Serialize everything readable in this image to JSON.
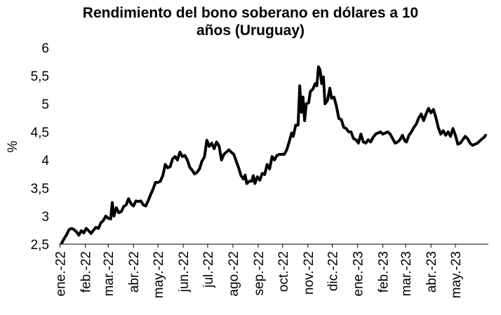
{
  "chart_data": {
    "type": "line",
    "title_line1": "Rendimiento del bono soberano en dólares a 10",
    "title_line2": "años (Uruguay)",
    "xlabel": "",
    "ylabel": "%",
    "ylim": [
      2.5,
      6
    ],
    "yticks": [
      "2,5",
      "3",
      "3,5",
      "4",
      "4,5",
      "5",
      "5,5",
      "6"
    ],
    "ytick_values": [
      2.5,
      3,
      3.5,
      4,
      4.5,
      5,
      5.5,
      6
    ],
    "grid": false,
    "legend": "none",
    "line_color": "#000000",
    "x_start": "2022-01-03",
    "x_end": "2023-06-07",
    "xticks": [
      {
        "date": "2022-01-01",
        "label": "ene.-22"
      },
      {
        "date": "2022-02-01",
        "label": "feb.-22"
      },
      {
        "date": "2022-03-01",
        "label": "mar.-22"
      },
      {
        "date": "2022-04-01",
        "label": "abr.-22"
      },
      {
        "date": "2022-05-01",
        "label": "may.-22"
      },
      {
        "date": "2022-06-01",
        "label": "jun.-22"
      },
      {
        "date": "2022-07-01",
        "label": "jul.-22"
      },
      {
        "date": "2022-08-01",
        "label": "ago.-22"
      },
      {
        "date": "2022-09-01",
        "label": "sep.-22"
      },
      {
        "date": "2022-10-01",
        "label": "oct.-22"
      },
      {
        "date": "2022-11-01",
        "label": "nov.-22"
      },
      {
        "date": "2022-12-01",
        "label": "dic.-22"
      },
      {
        "date": "2023-01-01",
        "label": "ene.-23"
      },
      {
        "date": "2023-02-01",
        "label": "feb.-23"
      },
      {
        "date": "2023-03-01",
        "label": "mar.-23"
      },
      {
        "date": "2023-04-01",
        "label": "abr.-23"
      },
      {
        "date": "2023-05-01",
        "label": "may.-23"
      }
    ],
    "series": [
      {
        "values": [
          [
            "2022-01-03",
            2.52
          ],
          [
            "2022-01-06",
            2.6
          ],
          [
            "2022-01-09",
            2.67
          ],
          [
            "2022-01-12",
            2.76
          ],
          [
            "2022-01-15",
            2.78
          ],
          [
            "2022-01-18",
            2.76
          ],
          [
            "2022-01-21",
            2.72
          ],
          [
            "2022-01-24",
            2.66
          ],
          [
            "2022-01-27",
            2.74
          ],
          [
            "2022-01-30",
            2.7
          ],
          [
            "2022-02-02",
            2.78
          ],
          [
            "2022-02-05",
            2.74
          ],
          [
            "2022-02-08",
            2.69
          ],
          [
            "2022-02-11",
            2.75
          ],
          [
            "2022-02-14",
            2.8
          ],
          [
            "2022-02-17",
            2.78
          ],
          [
            "2022-02-20",
            2.88
          ],
          [
            "2022-02-23",
            2.92
          ],
          [
            "2022-02-26",
            3.0
          ],
          [
            "2022-03-01",
            2.96
          ],
          [
            "2022-03-04",
            2.95
          ],
          [
            "2022-03-06",
            3.24
          ],
          [
            "2022-03-08",
            3.0
          ],
          [
            "2022-03-11",
            3.15
          ],
          [
            "2022-03-14",
            3.06
          ],
          [
            "2022-03-17",
            3.08
          ],
          [
            "2022-03-20",
            3.17
          ],
          [
            "2022-03-23",
            3.2
          ],
          [
            "2022-03-26",
            3.31
          ],
          [
            "2022-03-29",
            3.22
          ],
          [
            "2022-04-01",
            3.18
          ],
          [
            "2022-04-04",
            3.27
          ],
          [
            "2022-04-07",
            3.26
          ],
          [
            "2022-04-10",
            3.27
          ],
          [
            "2022-04-13",
            3.2
          ],
          [
            "2022-04-16",
            3.18
          ],
          [
            "2022-04-19",
            3.27
          ],
          [
            "2022-04-22",
            3.38
          ],
          [
            "2022-04-25",
            3.48
          ],
          [
            "2022-04-28",
            3.6
          ],
          [
            "2022-05-01",
            3.6
          ],
          [
            "2022-05-04",
            3.62
          ],
          [
            "2022-05-07",
            3.72
          ],
          [
            "2022-05-10",
            3.92
          ],
          [
            "2022-05-13",
            3.86
          ],
          [
            "2022-05-16",
            3.88
          ],
          [
            "2022-05-19",
            4.02
          ],
          [
            "2022-05-22",
            4.06
          ],
          [
            "2022-05-25",
            4.0
          ],
          [
            "2022-05-28",
            4.14
          ],
          [
            "2022-05-31",
            4.06
          ],
          [
            "2022-06-03",
            4.08
          ],
          [
            "2022-06-06",
            4.0
          ],
          [
            "2022-06-09",
            3.87
          ],
          [
            "2022-06-12",
            3.82
          ],
          [
            "2022-06-15",
            3.75
          ],
          [
            "2022-06-18",
            3.78
          ],
          [
            "2022-06-21",
            3.84
          ],
          [
            "2022-06-24",
            3.98
          ],
          [
            "2022-06-27",
            4.05
          ],
          [
            "2022-06-30",
            4.35
          ],
          [
            "2022-07-03",
            4.24
          ],
          [
            "2022-07-06",
            4.3
          ],
          [
            "2022-07-09",
            4.2
          ],
          [
            "2022-07-12",
            4.32
          ],
          [
            "2022-07-15",
            4.25
          ],
          [
            "2022-07-18",
            4.0
          ],
          [
            "2022-07-21",
            4.1
          ],
          [
            "2022-07-24",
            4.14
          ],
          [
            "2022-07-27",
            4.18
          ],
          [
            "2022-07-30",
            4.14
          ],
          [
            "2022-08-02",
            4.1
          ],
          [
            "2022-08-05",
            3.98
          ],
          [
            "2022-08-08",
            3.86
          ],
          [
            "2022-08-11",
            3.72
          ],
          [
            "2022-08-14",
            3.66
          ],
          [
            "2022-08-16",
            3.73
          ],
          [
            "2022-08-18",
            3.58
          ],
          [
            "2022-08-21",
            3.62
          ],
          [
            "2022-08-24",
            3.62
          ],
          [
            "2022-08-26",
            3.72
          ],
          [
            "2022-08-28",
            3.58
          ],
          [
            "2022-08-31",
            3.7
          ],
          [
            "2022-09-03",
            3.64
          ],
          [
            "2022-09-06",
            3.76
          ],
          [
            "2022-09-09",
            3.74
          ],
          [
            "2022-09-12",
            3.92
          ],
          [
            "2022-09-15",
            3.84
          ],
          [
            "2022-09-18",
            4.06
          ],
          [
            "2022-09-21",
            4.0
          ],
          [
            "2022-09-24",
            4.08
          ],
          [
            "2022-09-27",
            4.1
          ],
          [
            "2022-09-30",
            4.1
          ],
          [
            "2022-10-03",
            4.1
          ],
          [
            "2022-10-06",
            4.18
          ],
          [
            "2022-10-09",
            4.32
          ],
          [
            "2022-10-12",
            4.48
          ],
          [
            "2022-10-14",
            4.42
          ],
          [
            "2022-10-17",
            4.62
          ],
          [
            "2022-10-20",
            4.62
          ],
          [
            "2022-10-22",
            5.32
          ],
          [
            "2022-10-24",
            4.85
          ],
          [
            "2022-10-26",
            5.12
          ],
          [
            "2022-10-28",
            4.7
          ],
          [
            "2022-10-30",
            5.0
          ],
          [
            "2022-11-02",
            5.02
          ],
          [
            "2022-11-04",
            5.22
          ],
          [
            "2022-11-07",
            5.26
          ],
          [
            "2022-11-10",
            5.36
          ],
          [
            "2022-11-12",
            5.32
          ],
          [
            "2022-11-14",
            5.66
          ],
          [
            "2022-11-16",
            5.6
          ],
          [
            "2022-11-18",
            5.36
          ],
          [
            "2022-11-20",
            5.48
          ],
          [
            "2022-11-22",
            5.0
          ],
          [
            "2022-11-25",
            5.06
          ],
          [
            "2022-11-28",
            5.28
          ],
          [
            "2022-11-30",
            5.1
          ],
          [
            "2022-12-03",
            5.12
          ],
          [
            "2022-12-06",
            4.96
          ],
          [
            "2022-12-09",
            4.74
          ],
          [
            "2022-12-12",
            4.72
          ],
          [
            "2022-12-15",
            4.58
          ],
          [
            "2022-12-18",
            4.56
          ],
          [
            "2022-12-21",
            4.5
          ],
          [
            "2022-12-24",
            4.5
          ],
          [
            "2022-12-27",
            4.38
          ],
          [
            "2022-12-30",
            4.36
          ],
          [
            "2023-01-02",
            4.3
          ],
          [
            "2023-01-05",
            4.46
          ],
          [
            "2023-01-08",
            4.32
          ],
          [
            "2023-01-11",
            4.3
          ],
          [
            "2023-01-14",
            4.36
          ],
          [
            "2023-01-17",
            4.32
          ],
          [
            "2023-01-20",
            4.4
          ],
          [
            "2023-01-23",
            4.46
          ],
          [
            "2023-01-26",
            4.48
          ],
          [
            "2023-01-29",
            4.5
          ],
          [
            "2023-02-01",
            4.46
          ],
          [
            "2023-02-04",
            4.48
          ],
          [
            "2023-02-07",
            4.5
          ],
          [
            "2023-02-10",
            4.46
          ],
          [
            "2023-02-13",
            4.38
          ],
          [
            "2023-02-16",
            4.3
          ],
          [
            "2023-02-19",
            4.32
          ],
          [
            "2023-02-22",
            4.36
          ],
          [
            "2023-02-25",
            4.44
          ],
          [
            "2023-02-28",
            4.34
          ],
          [
            "2023-03-02",
            4.32
          ],
          [
            "2023-03-05",
            4.44
          ],
          [
            "2023-03-08",
            4.5
          ],
          [
            "2023-03-11",
            4.58
          ],
          [
            "2023-03-14",
            4.64
          ],
          [
            "2023-03-17",
            4.75
          ],
          [
            "2023-03-20",
            4.82
          ],
          [
            "2023-03-23",
            4.7
          ],
          [
            "2023-03-26",
            4.82
          ],
          [
            "2023-03-29",
            4.92
          ],
          [
            "2023-04-01",
            4.84
          ],
          [
            "2023-04-04",
            4.9
          ],
          [
            "2023-04-07",
            4.76
          ],
          [
            "2023-04-10",
            4.58
          ],
          [
            "2023-04-13",
            4.46
          ],
          [
            "2023-04-16",
            4.52
          ],
          [
            "2023-04-19",
            4.44
          ],
          [
            "2023-04-22",
            4.5
          ],
          [
            "2023-04-25",
            4.42
          ],
          [
            "2023-04-28",
            4.56
          ],
          [
            "2023-05-01",
            4.44
          ],
          [
            "2023-05-04",
            4.28
          ],
          [
            "2023-05-07",
            4.3
          ],
          [
            "2023-05-10",
            4.36
          ],
          [
            "2023-05-13",
            4.42
          ],
          [
            "2023-05-16",
            4.38
          ],
          [
            "2023-05-19",
            4.3
          ],
          [
            "2023-05-22",
            4.26
          ],
          [
            "2023-05-25",
            4.28
          ],
          [
            "2023-05-28",
            4.3
          ],
          [
            "2023-05-31",
            4.34
          ],
          [
            "2023-06-03",
            4.38
          ],
          [
            "2023-06-05",
            4.4
          ],
          [
            "2023-06-07",
            4.44
          ]
        ]
      }
    ]
  }
}
